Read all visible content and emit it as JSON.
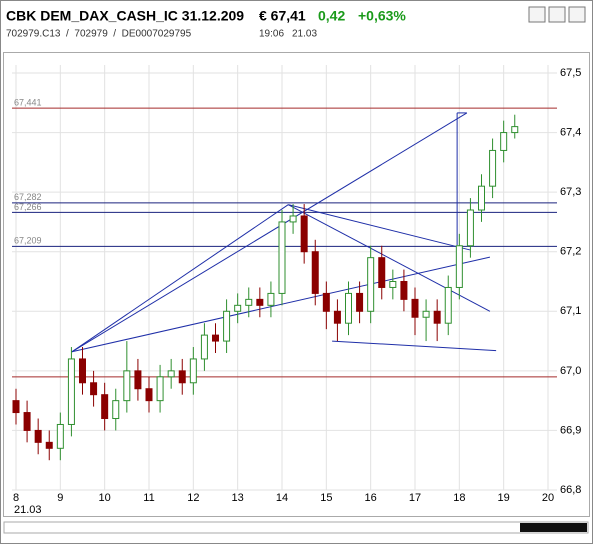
{
  "header": {
    "symbol": "CBK DEM_DAX_CASH_IC 31.12.209",
    "price": "€ 67,41",
    "change": "0,42",
    "change_pct": "+0,63%",
    "ids": "702979.C13  /  702979  /  DE0007029795",
    "time": "19:06",
    "date": "21.03"
  },
  "chart_data": {
    "type": "candlestick",
    "date_label": "21.03",
    "x": [
      8,
      8.25,
      8.5,
      8.75,
      9,
      9.25,
      9.5,
      9.75,
      10,
      10.25,
      10.5,
      10.75,
      11,
      11.25,
      11.5,
      11.75,
      12,
      12.25,
      12.5,
      12.75,
      13,
      13.25,
      13.5,
      13.75,
      14,
      14.25,
      14.5,
      14.75,
      15,
      15.25,
      15.5,
      15.75,
      16,
      16.25,
      16.5,
      16.75,
      17,
      17.25,
      17.5,
      17.75,
      18,
      18.25,
      18.5,
      18.75,
      19,
      19.25
    ],
    "open": [
      66.95,
      66.93,
      66.9,
      66.88,
      66.87,
      66.91,
      67.02,
      66.98,
      66.96,
      66.92,
      66.95,
      67.0,
      66.97,
      66.95,
      66.99,
      67.0,
      66.98,
      67.02,
      67.06,
      67.05,
      67.1,
      67.11,
      67.12,
      67.11,
      67.13,
      67.25,
      67.26,
      67.2,
      67.13,
      67.1,
      67.08,
      67.13,
      67.1,
      67.19,
      67.14,
      67.15,
      67.12,
      67.09,
      67.1,
      67.08,
      67.14,
      67.21,
      67.27,
      67.31,
      67.37,
      67.4
    ],
    "high": [
      66.97,
      66.95,
      66.92,
      66.9,
      66.93,
      67.04,
      67.04,
      67.0,
      66.98,
      66.97,
      67.05,
      67.02,
      66.99,
      67.01,
      67.02,
      67.02,
      67.04,
      67.08,
      67.08,
      67.12,
      67.13,
      67.14,
      67.14,
      67.15,
      67.27,
      67.28,
      67.28,
      67.22,
      67.15,
      67.12,
      67.15,
      67.15,
      67.21,
      67.21,
      67.17,
      67.17,
      67.14,
      67.12,
      67.12,
      67.16,
      67.23,
      67.29,
      67.33,
      67.39,
      67.42,
      67.43
    ],
    "low": [
      66.91,
      66.88,
      66.86,
      66.85,
      66.85,
      66.89,
      66.96,
      66.94,
      66.9,
      66.9,
      66.93,
      66.95,
      66.93,
      66.93,
      66.97,
      66.96,
      66.96,
      67.0,
      67.03,
      67.03,
      67.08,
      67.09,
      67.09,
      67.09,
      67.11,
      67.23,
      67.18,
      67.11,
      67.07,
      67.05,
      67.06,
      67.08,
      67.08,
      67.12,
      67.12,
      67.1,
      67.06,
      67.05,
      67.05,
      67.06,
      67.12,
      67.19,
      67.25,
      67.29,
      67.35,
      67.39
    ],
    "close": [
      66.93,
      66.9,
      66.88,
      66.87,
      66.91,
      67.02,
      66.98,
      66.96,
      66.92,
      66.95,
      67.0,
      66.97,
      66.95,
      66.99,
      67.0,
      66.98,
      67.02,
      67.06,
      67.05,
      67.1,
      67.11,
      67.12,
      67.11,
      67.13,
      67.25,
      67.26,
      67.2,
      67.13,
      67.1,
      67.08,
      67.13,
      67.1,
      67.19,
      67.14,
      67.15,
      67.12,
      67.09,
      67.1,
      67.08,
      67.14,
      67.21,
      67.27,
      67.31,
      67.37,
      67.4,
      67.41
    ],
    "up_color": "#2f8f2f",
    "down_color": "#8b0000",
    "xlim": [
      8,
      20
    ],
    "xticks": [
      8,
      9,
      10,
      11,
      12,
      13,
      14,
      15,
      16,
      17,
      18,
      19,
      20
    ],
    "ylim": [
      66.8,
      67.5
    ],
    "yticks": [
      {
        "value": 66.8,
        "label": "66,8"
      },
      {
        "value": 66.9,
        "label": "66,9"
      },
      {
        "value": 67.0,
        "label": "67,0"
      },
      {
        "value": 67.1,
        "label": "67,1"
      },
      {
        "value": 67.2,
        "label": "67,2"
      },
      {
        "value": 67.3,
        "label": "67,3"
      },
      {
        "value": 67.4,
        "label": "67,4"
      },
      {
        "value": 67.5,
        "label": "67,5"
      }
    ],
    "grid": true,
    "levels": [
      {
        "value": 67.441,
        "label": "67,441",
        "color": "#a52a2a"
      },
      {
        "value": 67.282,
        "label": "67,282",
        "color": "#1a237e"
      },
      {
        "value": 67.266,
        "label": "67,266",
        "color": "#1a237e"
      },
      {
        "value": 67.209,
        "label": "67,209",
        "color": "#1a237e"
      },
      {
        "value": 66.99,
        "color": "#a52a2a"
      }
    ],
    "trendline_color": "#1f2fa8",
    "trendlines": [
      [
        9.26,
        67.032,
        14.14,
        67.279
      ],
      [
        9.26,
        67.032,
        18.17,
        67.433
      ],
      [
        9.26,
        67.032,
        18.69,
        67.191
      ],
      [
        14.14,
        67.279,
        18.69,
        67.1
      ],
      [
        14.14,
        67.279,
        18.24,
        67.203
      ],
      [
        15.13,
        67.05,
        18.83,
        67.034
      ],
      [
        17.95,
        67.433,
        17.95,
        67.211
      ],
      [
        17.95,
        67.433,
        18.17,
        67.433
      ]
    ]
  }
}
